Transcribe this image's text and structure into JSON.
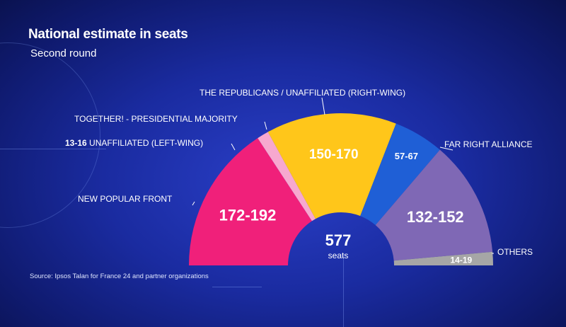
{
  "title": "National estimate in seats",
  "subtitle": "Second round",
  "source": "Source: Ipsos Talan for France 24 and partner organizations",
  "center": {
    "total": "577",
    "unit": "seats"
  },
  "chart_data": {
    "type": "pie",
    "shape": "hemicycle",
    "total_seats": 577,
    "segments": [
      {
        "name": "NEW POPULAR FRONT",
        "range_label": "172-192",
        "low": 172,
        "high": 192,
        "color": "#f0207a"
      },
      {
        "name": "UNAFFILIATED (LEFT-WING)",
        "range_label": "13-16",
        "low": 13,
        "high": 16,
        "color": "#f7a8cf"
      },
      {
        "name": "TOGETHER! - PRESIDENTIAL MAJORITY",
        "range_label": "150-170",
        "low": 150,
        "high": 170,
        "color": "#ffc61a"
      },
      {
        "name": "THE REPUBLICANS / UNAFFILIATED (RIGHT-WING)",
        "range_label": "57-67",
        "low": 57,
        "high": 67,
        "color": "#1f5fd6"
      },
      {
        "name": "FAR RIGHT ALLIANCE",
        "range_label": "132-152",
        "low": 132,
        "high": 152,
        "color": "#7f68b5"
      },
      {
        "name": "OTHERS",
        "range_label": "14-19",
        "low": 14,
        "high": 19,
        "color": "#a6a6a6"
      }
    ]
  }
}
